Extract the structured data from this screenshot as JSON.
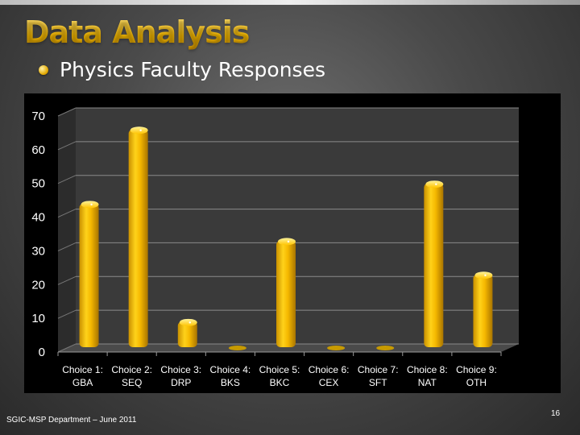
{
  "slide": {
    "title": "Data Analysis",
    "subtitle": "Physics Faculty Responses",
    "footer": "SGIC-MSP Department – June 2011",
    "page_number": "16"
  },
  "colors": {
    "bar_top": "#ffe45c",
    "bar_mid": "#f5b800",
    "bar_dark": "#b88200",
    "plot_bg": "#3b3b3b",
    "grid": "#8a8a8a"
  },
  "chart_data": {
    "type": "bar",
    "categories": [
      {
        "line1": "Choice 1:",
        "line2": "GBA"
      },
      {
        "line1": "Choice 2:",
        "line2": "SEQ"
      },
      {
        "line1": "Choice 3:",
        "line2": "DRP"
      },
      {
        "line1": "Choice 4:",
        "line2": "BKS"
      },
      {
        "line1": "Choice 5:",
        "line2": "BKC"
      },
      {
        "line1": "Choice 6:",
        "line2": "CEX"
      },
      {
        "line1": "Choice 7:",
        "line2": "SFT"
      },
      {
        "line1": "Choice 8:",
        "line2": "NAT"
      },
      {
        "line1": "Choice 9:",
        "line2": "OTH"
      }
    ],
    "values": [
      44,
      66,
      9,
      0,
      33,
      0,
      0,
      50,
      23
    ],
    "ylim": [
      0,
      70
    ],
    "yticks": [
      "0",
      "10",
      "20",
      "30",
      "40",
      "50",
      "60",
      "70"
    ],
    "grid": true,
    "legend": "none"
  }
}
